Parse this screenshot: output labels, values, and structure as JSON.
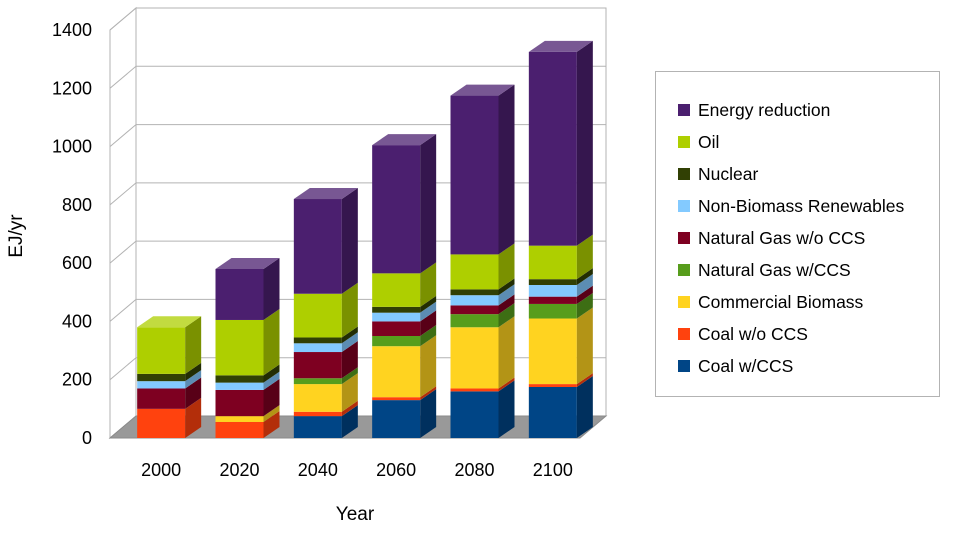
{
  "chart_data": {
    "type": "bar",
    "stacked": true,
    "three_d": true,
    "xlabel": "Year",
    "ylabel": "EJ/yr",
    "ylim": [
      0,
      1400
    ],
    "yticks": [
      "0",
      "200",
      "400",
      "600",
      "800",
      "1000",
      "1200",
      "1400"
    ],
    "grid": "horizontal",
    "legend_position": "right",
    "categories": [
      "2000",
      "2020",
      "2040",
      "2060",
      "2080",
      "2100"
    ],
    "series": [
      {
        "name": "Coal w/CCS",
        "color": "#004586",
        "values": [
          0,
          0,
          75,
          130,
          160,
          175
        ]
      },
      {
        "name": "Coal w/o CCS",
        "color": "#ff420e",
        "values": [
          100,
          55,
          15,
          10,
          10,
          10
        ]
      },
      {
        "name": "Commercial Biomass",
        "color": "#ffd320",
        "values": [
          0,
          20,
          95,
          175,
          210,
          225
        ]
      },
      {
        "name": "Natural Gas w/CCS",
        "color": "#579d1c",
        "values": [
          0,
          0,
          20,
          35,
          45,
          50
        ]
      },
      {
        "name": "Natural Gas w/o CCS",
        "color": "#7e0021",
        "values": [
          70,
          90,
          90,
          50,
          30,
          25
        ]
      },
      {
        "name": "Non-Biomass Renewables",
        "color": "#83caff",
        "values": [
          25,
          25,
          30,
          30,
          35,
          40
        ]
      },
      {
        "name": "Nuclear",
        "color": "#314004",
        "values": [
          25,
          25,
          20,
          20,
          20,
          20
        ]
      },
      {
        "name": "Oil",
        "color": "#aecf00",
        "values": [
          160,
          190,
          150,
          115,
          120,
          115
        ]
      },
      {
        "name": "Energy reduction",
        "color": "#4b1f6f",
        "values": [
          0,
          175,
          325,
          440,
          545,
          665
        ]
      }
    ]
  }
}
